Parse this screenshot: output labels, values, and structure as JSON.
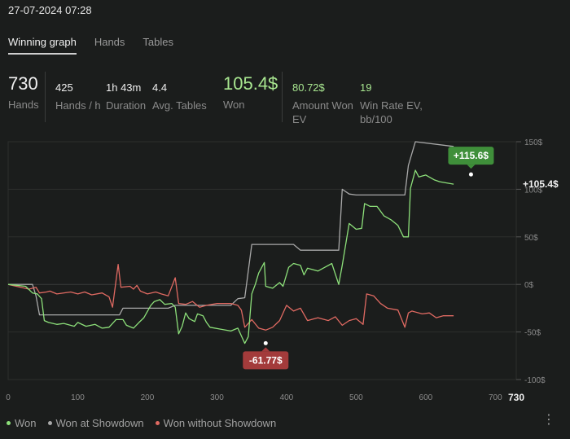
{
  "timestamp": "27-07-2024 07:28",
  "tabs": [
    {
      "label": "Winning graph",
      "active": true
    },
    {
      "label": "Hands",
      "active": false
    },
    {
      "label": "Tables",
      "active": false
    }
  ],
  "stats": {
    "hands": {
      "value": "730",
      "label": "Hands"
    },
    "hands_per_hour": {
      "value": "425",
      "label": "Hands / h"
    },
    "duration": {
      "value": "1h 43m",
      "label": "Duration"
    },
    "avg_tables": {
      "value": "4.4",
      "label": "Avg. Tables"
    },
    "won": {
      "value": "105.4$",
      "label": "Won"
    },
    "amount_won_ev": {
      "value": "80.72$",
      "label": "Amount Won EV"
    },
    "win_rate_ev": {
      "value": "19",
      "label": "Win Rate EV, bb/100"
    }
  },
  "colors": {
    "won": "#8de07a",
    "won_at_showdown": "#a9a9a9",
    "won_without_showdown": "#e06a62",
    "max_badge": "#3f8f3a",
    "min_badge": "#a33b3b"
  },
  "chart_data": {
    "type": "line",
    "xlim": [
      0,
      730
    ],
    "ylim": [
      -100,
      150
    ],
    "x_ticks": [
      "0",
      "100",
      "200",
      "300",
      "400",
      "500",
      "600",
      "700"
    ],
    "x_end_label": "730",
    "y_ticks": [
      "150$",
      "100$",
      "50$",
      "0$",
      "-50$",
      "-100$"
    ],
    "y_tick_values": [
      150,
      100,
      50,
      0,
      -50,
      -100
    ],
    "grid": true,
    "annotations": {
      "max": {
        "label": "+115.6$",
        "x": 665,
        "y": 115.6
      },
      "min": {
        "label": "-61.77$",
        "x": 370,
        "y": -61.77
      },
      "final": {
        "label": "+105.4$",
        "x": 730,
        "y": 105.4
      }
    },
    "series": [
      {
        "name": "Won",
        "points": [
          [
            0,
            0
          ],
          [
            25,
            -2
          ],
          [
            35,
            -9
          ],
          [
            42,
            -10
          ],
          [
            48,
            -15
          ],
          [
            52,
            -38
          ],
          [
            58,
            -40
          ],
          [
            70,
            -42
          ],
          [
            80,
            -41
          ],
          [
            95,
            -44
          ],
          [
            100,
            -40
          ],
          [
            112,
            -44
          ],
          [
            125,
            -42
          ],
          [
            135,
            -46
          ],
          [
            145,
            -45
          ],
          [
            155,
            -37
          ],
          [
            165,
            -37
          ],
          [
            170,
            -43
          ],
          [
            180,
            -46
          ],
          [
            188,
            -40
          ],
          [
            195,
            -35
          ],
          [
            205,
            -22
          ],
          [
            210,
            -18
          ],
          [
            218,
            -16
          ],
          [
            225,
            -21
          ],
          [
            235,
            -20
          ],
          [
            240,
            -24
          ],
          [
            245,
            -52
          ],
          [
            250,
            -44
          ],
          [
            255,
            -30
          ],
          [
            260,
            -36
          ],
          [
            268,
            -39
          ],
          [
            272,
            -31
          ],
          [
            280,
            -33
          ],
          [
            285,
            -40
          ],
          [
            290,
            -45
          ],
          [
            305,
            -47
          ],
          [
            320,
            -49
          ],
          [
            330,
            -46
          ],
          [
            340,
            -62
          ],
          [
            345,
            -55
          ],
          [
            350,
            -10
          ],
          [
            355,
            0
          ],
          [
            360,
            12
          ],
          [
            368,
            23
          ],
          [
            370,
            -2
          ],
          [
            380,
            -4
          ],
          [
            390,
            2
          ],
          [
            395,
            -2
          ],
          [
            403,
            18
          ],
          [
            410,
            22
          ],
          [
            420,
            20
          ],
          [
            425,
            10
          ],
          [
            430,
            17
          ],
          [
            445,
            14
          ],
          [
            455,
            18
          ],
          [
            465,
            22
          ],
          [
            475,
            0
          ],
          [
            480,
            20
          ],
          [
            490,
            64
          ],
          [
            500,
            58
          ],
          [
            508,
            59
          ],
          [
            512,
            85
          ],
          [
            520,
            82
          ],
          [
            530,
            82
          ],
          [
            540,
            72
          ],
          [
            550,
            68
          ],
          [
            560,
            62
          ],
          [
            568,
            50
          ],
          [
            575,
            50
          ],
          [
            578,
            101
          ],
          [
            585,
            120
          ],
          [
            590,
            113
          ],
          [
            600,
            115
          ],
          [
            612,
            110
          ],
          [
            620,
            108
          ],
          [
            640,
            105.4
          ]
        ]
      },
      {
        "name": "Won at Showdown",
        "points": [
          [
            0,
            0
          ],
          [
            35,
            0
          ],
          [
            40,
            -12
          ],
          [
            45,
            -32
          ],
          [
            110,
            -32
          ],
          [
            150,
            -32
          ],
          [
            160,
            -32
          ],
          [
            165,
            -25
          ],
          [
            230,
            -25
          ],
          [
            240,
            -22
          ],
          [
            320,
            -22
          ],
          [
            330,
            -15
          ],
          [
            340,
            -14
          ],
          [
            350,
            42
          ],
          [
            410,
            42
          ],
          [
            420,
            36
          ],
          [
            475,
            36
          ],
          [
            480,
            100
          ],
          [
            490,
            95
          ],
          [
            500,
            94
          ],
          [
            570,
            94
          ],
          [
            575,
            125
          ],
          [
            585,
            150
          ],
          [
            640,
            145
          ]
        ]
      },
      {
        "name": "Won without Showdown",
        "points": [
          [
            0,
            0
          ],
          [
            30,
            -5
          ],
          [
            40,
            -3
          ],
          [
            45,
            -9
          ],
          [
            55,
            -8
          ],
          [
            60,
            -7
          ],
          [
            70,
            -10
          ],
          [
            90,
            -8
          ],
          [
            100,
            -10
          ],
          [
            110,
            -8
          ],
          [
            120,
            -11
          ],
          [
            135,
            -9
          ],
          [
            145,
            -13
          ],
          [
            150,
            -24
          ],
          [
            158,
            21
          ],
          [
            162,
            -3
          ],
          [
            175,
            -2
          ],
          [
            180,
            -5
          ],
          [
            185,
            -1
          ],
          [
            190,
            -7
          ],
          [
            200,
            -10
          ],
          [
            212,
            -8
          ],
          [
            220,
            -10
          ],
          [
            230,
            -12
          ],
          [
            240,
            7
          ],
          [
            245,
            -20
          ],
          [
            255,
            -21
          ],
          [
            265,
            -18
          ],
          [
            275,
            -24
          ],
          [
            285,
            -22
          ],
          [
            300,
            -20
          ],
          [
            320,
            -20
          ],
          [
            330,
            -22
          ],
          [
            335,
            -27
          ],
          [
            340,
            -45
          ],
          [
            350,
            -37
          ],
          [
            360,
            -46
          ],
          [
            370,
            -48
          ],
          [
            380,
            -45
          ],
          [
            390,
            -38
          ],
          [
            400,
            -22
          ],
          [
            410,
            -28
          ],
          [
            420,
            -25
          ],
          [
            430,
            -38
          ],
          [
            445,
            -35
          ],
          [
            460,
            -38
          ],
          [
            470,
            -34
          ],
          [
            480,
            -43
          ],
          [
            490,
            -38
          ],
          [
            500,
            -36
          ],
          [
            510,
            -42
          ],
          [
            515,
            -10
          ],
          [
            525,
            -12
          ],
          [
            535,
            -20
          ],
          [
            545,
            -25
          ],
          [
            560,
            -27
          ],
          [
            570,
            -45
          ],
          [
            575,
            -30
          ],
          [
            580,
            -28
          ],
          [
            595,
            -31
          ],
          [
            605,
            -30
          ],
          [
            615,
            -35
          ],
          [
            625,
            -33
          ],
          [
            640,
            -33
          ]
        ]
      }
    ]
  },
  "legend": [
    {
      "label": "Won",
      "color_key": "won"
    },
    {
      "label": "Won at Showdown",
      "color_key": "won_at_showdown"
    },
    {
      "label": "Won without Showdown",
      "color_key": "won_without_showdown"
    }
  ]
}
